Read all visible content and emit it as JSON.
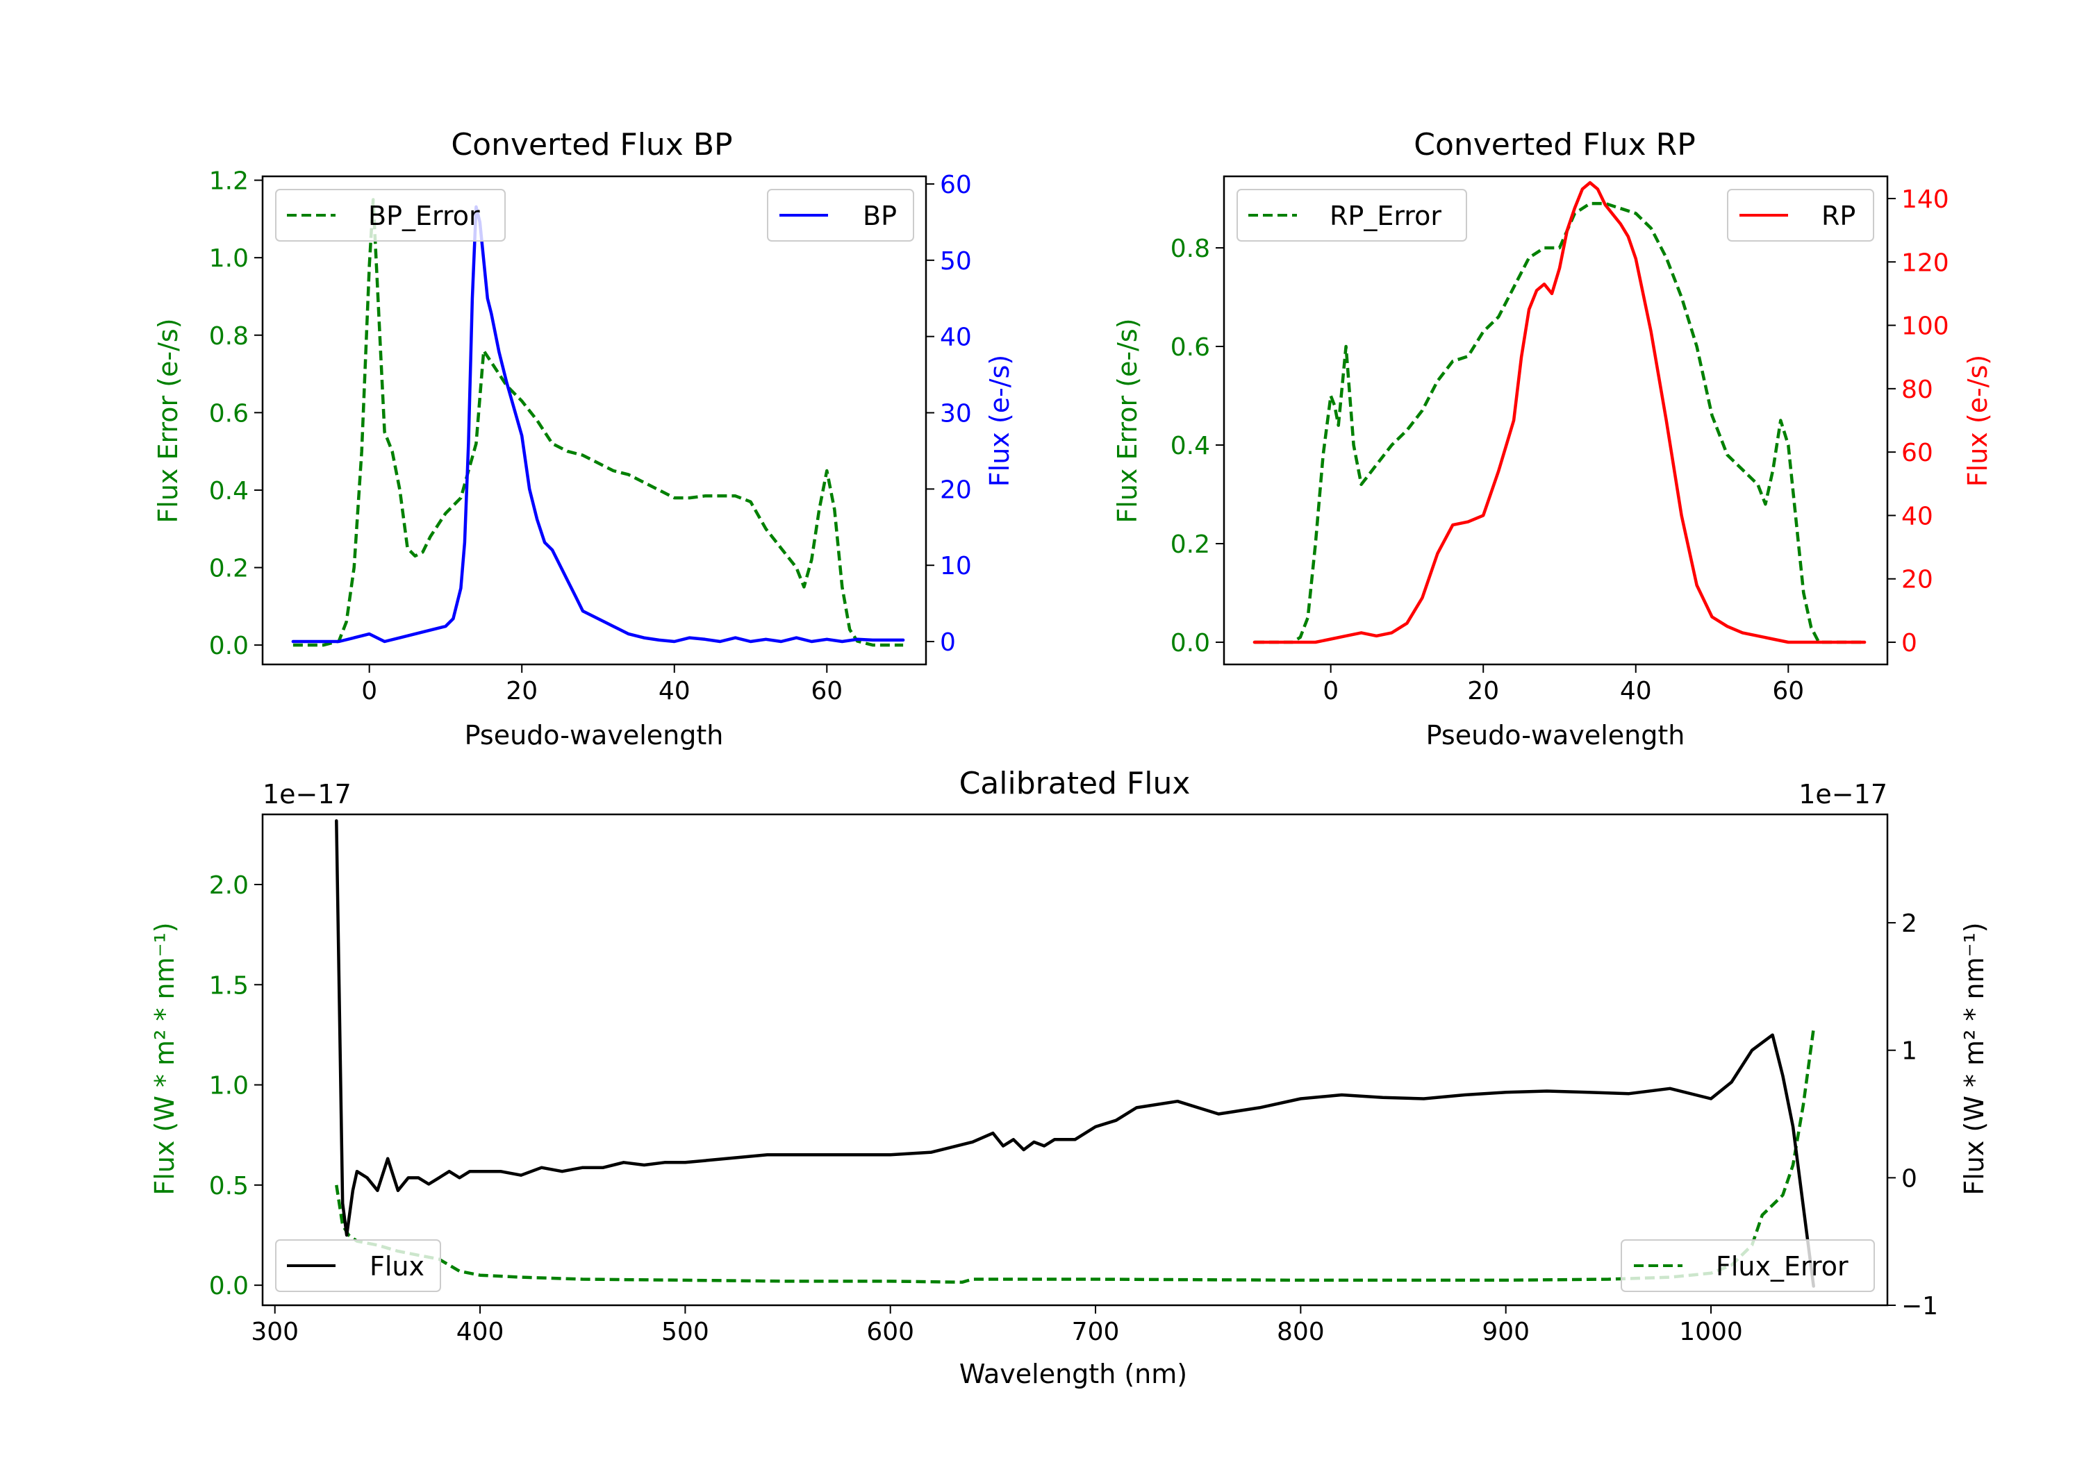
{
  "colors": {
    "error": "#008000",
    "bp": "#0000ff",
    "rp": "#ff0000",
    "flux": "#000000",
    "axis": "#000000"
  },
  "chart_data": [
    {
      "id": "bp",
      "type": "line",
      "title": "Converted Flux BP",
      "xlabel": "Pseudo-wavelength",
      "ylabel_left": "Flux Error (e-/s)",
      "ylabel_right": "Flux (e-/s)",
      "xlim": [
        -14,
        73
      ],
      "xticks": [
        0,
        20,
        40,
        60
      ],
      "ylim_left": [
        -0.05,
        1.21
      ],
      "yticks_left": [
        "0.0",
        "0.2",
        "0.4",
        "0.6",
        "0.8",
        "1.0",
        "1.2"
      ],
      "ylim_right": [
        -3,
        61
      ],
      "yticks_right": [
        "0",
        "10",
        "20",
        "30",
        "40",
        "50",
        "60"
      ],
      "legend_left": {
        "label": "BP_Error",
        "position": "upper-left"
      },
      "legend_right": {
        "label": "BP",
        "position": "upper-right"
      },
      "series": [
        {
          "name": "BP_Error",
          "axis": "left",
          "style": "dashed",
          "color": "#008000",
          "x": [
            -10,
            -6,
            -4,
            -3,
            -2,
            -1,
            0,
            0.5,
            1,
            1.5,
            2,
            3,
            4,
            5,
            6,
            7,
            8,
            9,
            10,
            12,
            14,
            15,
            16,
            18,
            20,
            22,
            24,
            26,
            28,
            30,
            32,
            34,
            36,
            38,
            40,
            42,
            44,
            46,
            48,
            50,
            52,
            54,
            56,
            57,
            58,
            59,
            60,
            61,
            62,
            63,
            64,
            66,
            70
          ],
          "y": [
            0.0,
            0.0,
            0.01,
            0.06,
            0.2,
            0.5,
            0.98,
            1.15,
            0.95,
            0.75,
            0.55,
            0.5,
            0.4,
            0.25,
            0.23,
            0.24,
            0.28,
            0.31,
            0.34,
            0.38,
            0.52,
            0.76,
            0.73,
            0.67,
            0.63,
            0.58,
            0.52,
            0.5,
            0.49,
            0.47,
            0.45,
            0.44,
            0.42,
            0.4,
            0.38,
            0.38,
            0.385,
            0.385,
            0.385,
            0.37,
            0.3,
            0.25,
            0.2,
            0.15,
            0.22,
            0.35,
            0.45,
            0.35,
            0.15,
            0.04,
            0.01,
            0.0,
            0.0
          ]
        },
        {
          "name": "BP",
          "axis": "right",
          "style": "solid",
          "color": "#0000ff",
          "x": [
            -10,
            -4,
            -2,
            0,
            2,
            4,
            6,
            8,
            10,
            11,
            12,
            12.5,
            13,
            13.5,
            14,
            14.5,
            15,
            15.5,
            16,
            17,
            18,
            20,
            21,
            22,
            23,
            24,
            25,
            26,
            27,
            28,
            30,
            31,
            32,
            34,
            36,
            38,
            40,
            42,
            44,
            46,
            48,
            50,
            52,
            54,
            56,
            58,
            60,
            62,
            64,
            66,
            70
          ],
          "y": [
            0,
            0,
            0.5,
            1,
            0,
            0.5,
            1,
            1.5,
            2,
            3,
            7,
            13,
            26,
            45,
            57,
            55,
            50,
            45,
            43,
            38,
            34,
            27,
            20,
            16,
            13,
            12,
            10,
            8,
            6,
            4,
            3,
            2.5,
            2,
            1,
            0.5,
            0.2,
            0,
            0.5,
            0.3,
            0,
            0.5,
            0,
            0.3,
            0,
            0.5,
            0,
            0.3,
            0,
            0.3,
            0.2,
            0.2
          ]
        }
      ]
    },
    {
      "id": "rp",
      "type": "line",
      "title": "Converted Flux RP",
      "xlabel": "Pseudo-wavelength",
      "ylabel_left": "Flux Error (e-/s)",
      "ylabel_right": "Flux (e-/s)",
      "xlim": [
        -14,
        73
      ],
      "xticks": [
        0,
        20,
        40,
        60
      ],
      "ylim_left": [
        -0.045,
        0.945
      ],
      "yticks_left": [
        "0.0",
        "0.2",
        "0.4",
        "0.6",
        "0.8"
      ],
      "ylim_right": [
        -7,
        147
      ],
      "yticks_right": [
        "0",
        "20",
        "40",
        "60",
        "80",
        "100",
        "120",
        "140"
      ],
      "legend_left": {
        "label": "RP_Error",
        "position": "upper-left"
      },
      "legend_right": {
        "label": "RP",
        "position": "upper-right"
      },
      "series": [
        {
          "name": "RP_Error",
          "axis": "left",
          "style": "dashed",
          "color": "#008000",
          "x": [
            -10,
            -5,
            -4,
            -3,
            -2,
            -1,
            0,
            0.5,
            1,
            2,
            3,
            4,
            5,
            6,
            8,
            10,
            12,
            14,
            16,
            18,
            20,
            22,
            24,
            26,
            28,
            30,
            32,
            34,
            36,
            38,
            40,
            42,
            44,
            46,
            48,
            50,
            52,
            54,
            56,
            57,
            58,
            59,
            60,
            61,
            62,
            63,
            64,
            66,
            70
          ],
          "y": [
            0.0,
            0.0,
            0.01,
            0.05,
            0.2,
            0.38,
            0.5,
            0.48,
            0.44,
            0.6,
            0.4,
            0.32,
            0.34,
            0.36,
            0.4,
            0.43,
            0.47,
            0.53,
            0.57,
            0.58,
            0.63,
            0.66,
            0.72,
            0.78,
            0.8,
            0.8,
            0.87,
            0.89,
            0.89,
            0.88,
            0.87,
            0.84,
            0.78,
            0.7,
            0.6,
            0.46,
            0.38,
            0.35,
            0.32,
            0.28,
            0.35,
            0.45,
            0.4,
            0.25,
            0.1,
            0.03,
            0.0,
            0.0,
            0.0
          ]
        },
        {
          "name": "RP",
          "axis": "right",
          "style": "solid",
          "color": "#ff0000",
          "x": [
            -10,
            -2,
            0,
            2,
            4,
            6,
            8,
            10,
            12,
            14,
            16,
            18,
            20,
            22,
            24,
            25,
            26,
            27,
            28,
            29,
            30,
            31,
            32,
            33,
            34,
            35,
            36,
            37,
            38,
            39,
            40,
            42,
            44,
            46,
            48,
            50,
            52,
            54,
            56,
            58,
            60,
            62,
            66,
            70
          ],
          "y": [
            0,
            0,
            1,
            2,
            3,
            2,
            3,
            6,
            14,
            28,
            37,
            38,
            40,
            54,
            70,
            90,
            105,
            111,
            113,
            110,
            118,
            130,
            137,
            143,
            145,
            143,
            138,
            135,
            132,
            128,
            121,
            98,
            70,
            40,
            18,
            8,
            5,
            3,
            2,
            1,
            0,
            0,
            0,
            0
          ]
        }
      ]
    },
    {
      "id": "calibrated",
      "type": "line",
      "title": "Calibrated Flux",
      "xlabel": "Wavelength (nm)",
      "ylabel_left": "Flux (W * m² * nm⁻¹)",
      "ylabel_right": "Flux (W * m² * nm⁻¹)",
      "offset_left": "1e−17",
      "offset_right": "1e−17",
      "xlim": [
        294,
        1086
      ],
      "xticks": [
        300,
        400,
        500,
        600,
        700,
        800,
        900,
        1000
      ],
      "ylim_left": [
        -0.1,
        2.35
      ],
      "yticks_left": [
        "0.0",
        "0.5",
        "1.0",
        "1.5",
        "2.0"
      ],
      "ylim_right": [
        -1.0,
        2.85
      ],
      "yticks_right": [
        "−1",
        "0",
        "1",
        "2"
      ],
      "legend_left": {
        "label": "Flux",
        "position": "lower-left"
      },
      "legend_right": {
        "label": "Flux_Error",
        "position": "lower-right"
      },
      "series": [
        {
          "name": "Flux_Error",
          "axis": "left",
          "style": "dashed",
          "color": "#008000",
          "x": [
            330,
            333,
            336,
            340,
            350,
            360,
            370,
            380,
            390,
            400,
            420,
            450,
            500,
            550,
            600,
            635,
            640,
            700,
            800,
            900,
            950,
            980,
            1000,
            1010,
            1020,
            1025,
            1030,
            1035,
            1040,
            1045,
            1050
          ],
          "y": [
            0.5,
            0.3,
            0.25,
            0.22,
            0.2,
            0.17,
            0.15,
            0.13,
            0.07,
            0.05,
            0.04,
            0.03,
            0.025,
            0.02,
            0.02,
            0.015,
            0.03,
            0.03,
            0.025,
            0.025,
            0.03,
            0.04,
            0.06,
            0.1,
            0.2,
            0.35,
            0.4,
            0.45,
            0.6,
            0.9,
            1.28
          ]
        },
        {
          "name": "Flux",
          "axis": "right",
          "style": "solid",
          "color": "#000000",
          "x": [
            330,
            333,
            335,
            338,
            340,
            345,
            350,
            355,
            360,
            365,
            370,
            375,
            380,
            385,
            390,
            395,
            400,
            410,
            420,
            430,
            440,
            450,
            460,
            470,
            480,
            490,
            500,
            520,
            540,
            560,
            580,
            600,
            620,
            640,
            650,
            655,
            660,
            665,
            670,
            675,
            680,
            690,
            700,
            710,
            720,
            740,
            750,
            760,
            780,
            800,
            820,
            840,
            860,
            880,
            900,
            920,
            940,
            960,
            980,
            1000,
            1010,
            1020,
            1030,
            1035,
            1040,
            1050
          ],
          "y": [
            2.8,
            -0.2,
            -0.45,
            -0.1,
            0.05,
            0.0,
            -0.1,
            0.15,
            -0.1,
            0.0,
            0.0,
            -0.05,
            0.0,
            0.05,
            0.0,
            0.05,
            0.05,
            0.05,
            0.02,
            0.08,
            0.05,
            0.08,
            0.08,
            0.12,
            0.1,
            0.12,
            0.12,
            0.15,
            0.18,
            0.18,
            0.18,
            0.18,
            0.2,
            0.28,
            0.35,
            0.25,
            0.3,
            0.22,
            0.28,
            0.25,
            0.3,
            0.3,
            0.4,
            0.45,
            0.55,
            0.6,
            0.55,
            0.5,
            0.55,
            0.62,
            0.65,
            0.63,
            0.62,
            0.65,
            0.67,
            0.68,
            0.67,
            0.66,
            0.7,
            0.62,
            0.75,
            1.0,
            1.12,
            0.8,
            0.4,
            -0.85
          ]
        }
      ]
    }
  ]
}
